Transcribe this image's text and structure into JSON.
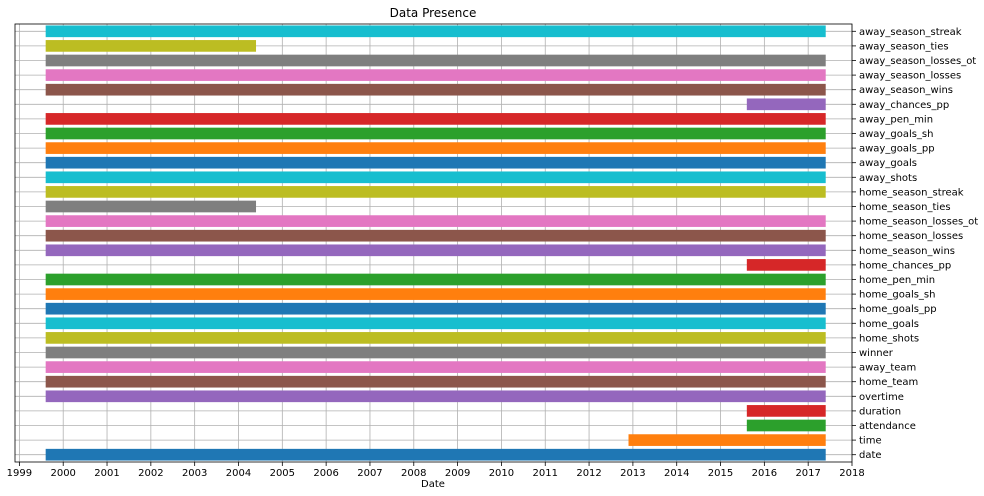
{
  "chart_data": {
    "type": "bar",
    "orientation": "horizontal",
    "title": "Data Presence",
    "xlabel": "Date",
    "ylabel": "",
    "xlim": [
      1998.9,
      2018.0
    ],
    "grid": true,
    "legend": "none",
    "x_ticks": [
      "1999",
      "2000",
      "2001",
      "2002",
      "2003",
      "2004",
      "2005",
      "2006",
      "2007",
      "2008",
      "2009",
      "2010",
      "2011",
      "2012",
      "2013",
      "2014",
      "2015",
      "2016",
      "2017",
      "2018"
    ],
    "series": [
      {
        "label": "away_season_streak",
        "start": 1999.6,
        "end": 2017.4,
        "color": "#17becf"
      },
      {
        "label": "away_season_ties",
        "start": 1999.6,
        "end": 2004.4,
        "color": "#bcbd22"
      },
      {
        "label": "away_season_losses_ot",
        "start": 1999.6,
        "end": 2017.4,
        "color": "#7f7f7f"
      },
      {
        "label": "away_season_losses",
        "start": 1999.6,
        "end": 2017.4,
        "color": "#e377c2"
      },
      {
        "label": "away_season_wins",
        "start": 1999.6,
        "end": 2017.4,
        "color": "#8c564b"
      },
      {
        "label": "away_chances_pp",
        "start": 2015.6,
        "end": 2017.4,
        "color": "#9467bd"
      },
      {
        "label": "away_pen_min",
        "start": 1999.6,
        "end": 2017.4,
        "color": "#d62728"
      },
      {
        "label": "away_goals_sh",
        "start": 1999.6,
        "end": 2017.4,
        "color": "#2ca02c"
      },
      {
        "label": "away_goals_pp",
        "start": 1999.6,
        "end": 2017.4,
        "color": "#ff7f0e"
      },
      {
        "label": "away_goals",
        "start": 1999.6,
        "end": 2017.4,
        "color": "#1f77b4"
      },
      {
        "label": "away_shots",
        "start": 1999.6,
        "end": 2017.4,
        "color": "#17becf"
      },
      {
        "label": "home_season_streak",
        "start": 1999.6,
        "end": 2017.4,
        "color": "#bcbd22"
      },
      {
        "label": "home_season_ties",
        "start": 1999.6,
        "end": 2004.4,
        "color": "#7f7f7f"
      },
      {
        "label": "home_season_losses_ot",
        "start": 1999.6,
        "end": 2017.4,
        "color": "#e377c2"
      },
      {
        "label": "home_season_losses",
        "start": 1999.6,
        "end": 2017.4,
        "color": "#8c564b"
      },
      {
        "label": "home_season_wins",
        "start": 1999.6,
        "end": 2017.4,
        "color": "#9467bd"
      },
      {
        "label": "home_chances_pp",
        "start": 2015.6,
        "end": 2017.4,
        "color": "#d62728"
      },
      {
        "label": "home_pen_min",
        "start": 1999.6,
        "end": 2017.4,
        "color": "#2ca02c"
      },
      {
        "label": "home_goals_sh",
        "start": 1999.6,
        "end": 2017.4,
        "color": "#ff7f0e"
      },
      {
        "label": "home_goals_pp",
        "start": 1999.6,
        "end": 2017.4,
        "color": "#1f77b4"
      },
      {
        "label": "home_goals",
        "start": 1999.6,
        "end": 2017.4,
        "color": "#17becf"
      },
      {
        "label": "home_shots",
        "start": 1999.6,
        "end": 2017.4,
        "color": "#bcbd22"
      },
      {
        "label": "winner",
        "start": 1999.6,
        "end": 2017.4,
        "color": "#7f7f7f"
      },
      {
        "label": "away_team",
        "start": 1999.6,
        "end": 2017.4,
        "color": "#e377c2"
      },
      {
        "label": "home_team",
        "start": 1999.6,
        "end": 2017.4,
        "color": "#8c564b"
      },
      {
        "label": "overtime",
        "start": 1999.6,
        "end": 2017.4,
        "color": "#9467bd"
      },
      {
        "label": "duration",
        "start": 2015.6,
        "end": 2017.4,
        "color": "#d62728"
      },
      {
        "label": "attendance",
        "start": 2015.6,
        "end": 2017.4,
        "color": "#2ca02c"
      },
      {
        "label": "time",
        "start": 2012.9,
        "end": 2017.4,
        "color": "#ff7f0e"
      },
      {
        "label": "date",
        "start": 1999.6,
        "end": 2017.4,
        "color": "#1f77b4"
      }
    ]
  }
}
